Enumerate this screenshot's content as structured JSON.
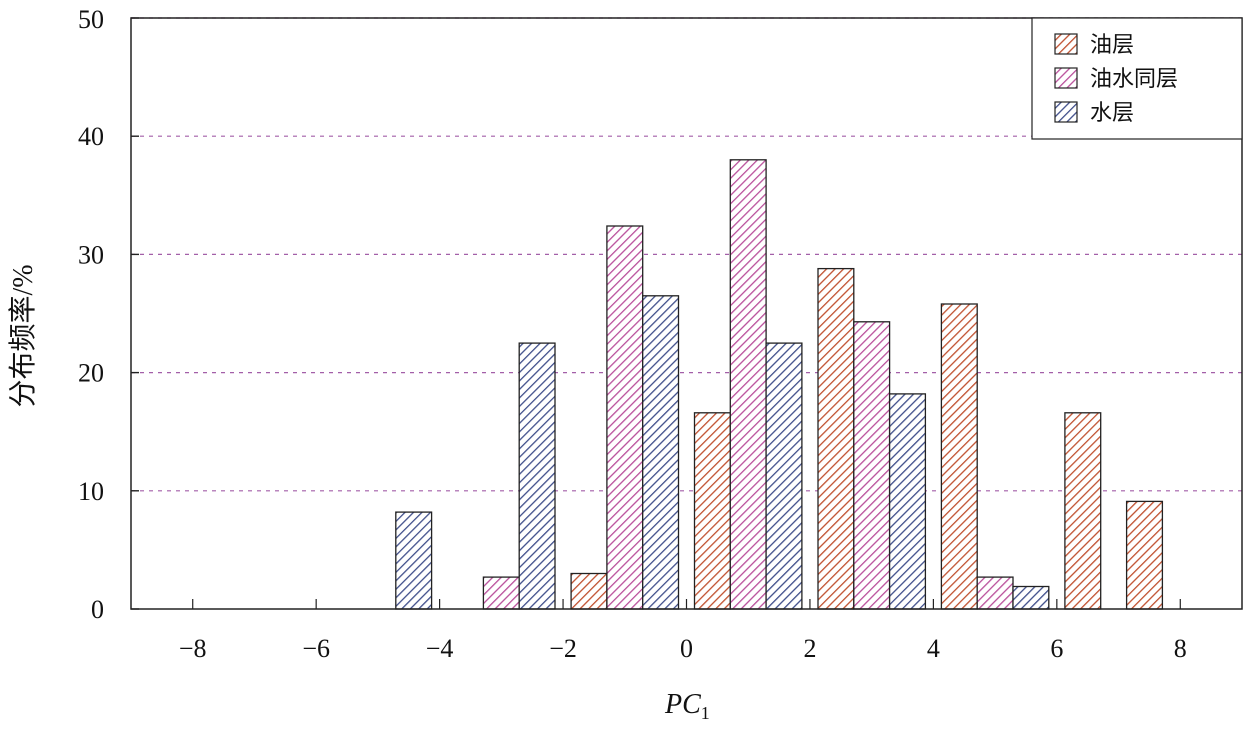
{
  "chart_data": {
    "type": "bar",
    "title": "",
    "xlabel_main": "PC",
    "xlabel_sub": "1",
    "ylabel": "分布频率/%",
    "xlim": [
      -9,
      9
    ],
    "ylim": [
      0,
      50
    ],
    "grid": "horizontal-dashed",
    "legend_position": "top-right",
    "categories": [
      -7,
      -5,
      -3,
      -1,
      1,
      3,
      5,
      7
    ],
    "x_tick_values": [
      -8,
      -6,
      -4,
      -2,
      0,
      2,
      4,
      6,
      8
    ],
    "x_tick_labels": [
      "−8",
      "−6",
      "−4",
      "−2",
      "0",
      "2",
      "4",
      "6",
      "8"
    ],
    "y_ticks": [
      0,
      10,
      20,
      30,
      40,
      50
    ],
    "y_tick_labels": [
      "0",
      "10",
      "20",
      "30",
      "40",
      "50"
    ],
    "series": [
      {
        "name": "油层",
        "color": "#c0502f",
        "values": [
          0,
          0,
          0,
          3.0,
          16.6,
          28.8,
          25.8,
          16.6
        ]
      },
      {
        "name": "油水同层",
        "color": "#b94f9b",
        "values": [
          0,
          0,
          2.7,
          32.4,
          38.0,
          24.3,
          2.7,
          0
        ]
      },
      {
        "name": "水层",
        "color": "#3f4e8a",
        "values": [
          0,
          8.2,
          22.5,
          26.5,
          22.5,
          18.2,
          1.9,
          0
        ]
      }
    ],
    "last_bar_extra": {
      "series": "油层",
      "x": 8,
      "value": 9.1
    }
  }
}
